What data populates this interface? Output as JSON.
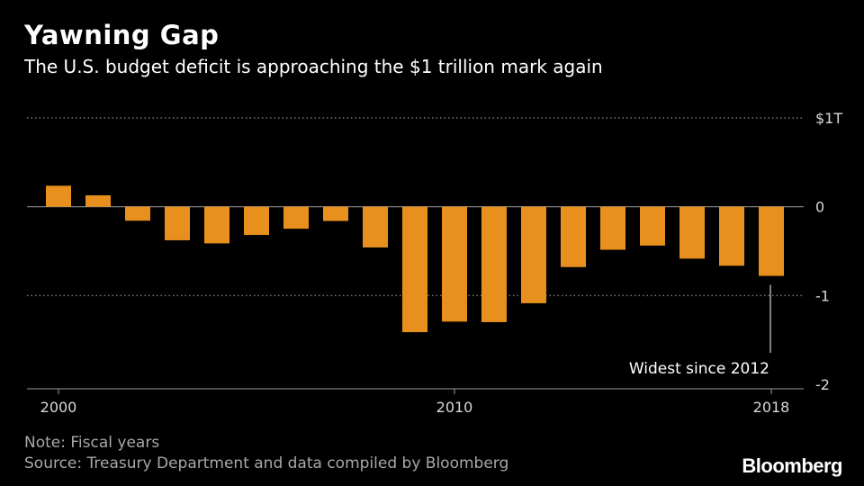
{
  "title": "Yawning Gap",
  "subtitle": "The U.S. budget deficit is approaching the $1 trillion mark again",
  "note": "Note: Fiscal years",
  "source": "Source: Treasury Department and data compiled by Bloomberg",
  "logo": "Bloomberg",
  "colors": {
    "bar": "#e8901e",
    "background": "#000000",
    "grid": "#777777",
    "axis_text": "#d8d8d8"
  },
  "chart_data": {
    "type": "bar",
    "categories": [
      "2000",
      "2001",
      "2002",
      "2003",
      "2004",
      "2005",
      "2006",
      "2007",
      "2008",
      "2009",
      "2010",
      "2011",
      "2012",
      "2013",
      "2014",
      "2015",
      "2016",
      "2017",
      "2018"
    ],
    "values": [
      0.236,
      0.128,
      -0.158,
      -0.378,
      -0.413,
      -0.318,
      -0.248,
      -0.161,
      -0.459,
      -1.413,
      -1.294,
      -1.3,
      -1.087,
      -0.68,
      -0.485,
      -0.438,
      -0.585,
      -0.665,
      -0.779
    ],
    "x_tick_labels": [
      "2000",
      "2010",
      "2018"
    ],
    "y_ticks": [
      {
        "value": 1,
        "label": "$1T"
      },
      {
        "value": 0,
        "label": "0"
      },
      {
        "value": -1,
        "label": "-1"
      },
      {
        "value": -2,
        "label": "-2"
      }
    ],
    "ylim": [
      -2,
      1
    ],
    "grid": true,
    "annotation": {
      "text": "Widest since 2012",
      "category": "2018"
    }
  }
}
